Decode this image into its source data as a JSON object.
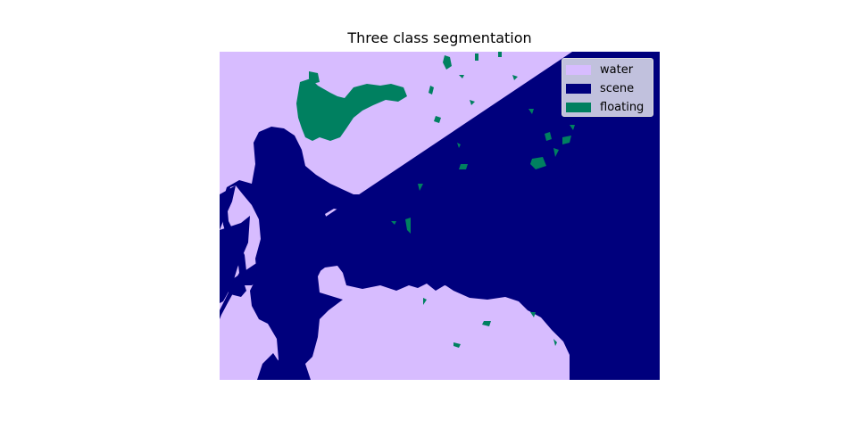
{
  "figure": {
    "title": "Three class segmentation"
  },
  "legend": {
    "items": [
      {
        "label": "water",
        "color": "#d7bcff"
      },
      {
        "label": "scene",
        "color": "#00007d"
      },
      {
        "label": "floating",
        "color": "#008060"
      }
    ]
  },
  "classes": {
    "water": "#d7bcff",
    "scene": "#00007d",
    "floating": "#008060"
  }
}
